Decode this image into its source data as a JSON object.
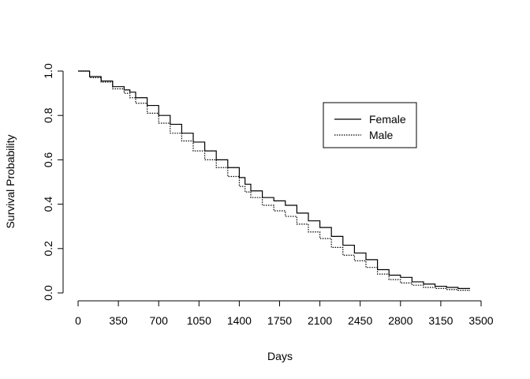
{
  "chart_data": {
    "type": "line",
    "title": "",
    "xlabel": "Days",
    "ylabel": "Survival Probability",
    "xlim": [
      0,
      3500
    ],
    "ylim": [
      0,
      1
    ],
    "xticks": [
      0,
      350,
      700,
      1050,
      1400,
      1750,
      2100,
      2450,
      2800,
      3150,
      3500
    ],
    "xtick_labels": [
      "0",
      "350",
      "700",
      "1050",
      "1400",
      "1750",
      "2100",
      "2450",
      "2800",
      "3150",
      "3500"
    ],
    "yticks": [
      0,
      0.2,
      0.4,
      0.6,
      0.8,
      1.0
    ],
    "ytick_labels": [
      "0.0",
      "0.2",
      "0.4",
      "0.6",
      "0.8",
      "1.0"
    ],
    "grid": false,
    "legend_position": "top-right",
    "series": [
      {
        "name": "Female",
        "line_style": "solid",
        "color": "#000000",
        "x": [
          0,
          100,
          200,
          300,
          400,
          450,
          500,
          600,
          700,
          800,
          900,
          1000,
          1100,
          1200,
          1300,
          1400,
          1450,
          1500,
          1600,
          1700,
          1800,
          1900,
          2000,
          2100,
          2200,
          2300,
          2400,
          2500,
          2600,
          2700,
          2800,
          2900,
          3000,
          3100,
          3200,
          3300,
          3400
        ],
        "y": [
          1.0,
          0.975,
          0.955,
          0.93,
          0.915,
          0.905,
          0.88,
          0.845,
          0.8,
          0.76,
          0.72,
          0.68,
          0.64,
          0.6,
          0.565,
          0.52,
          0.49,
          0.46,
          0.43,
          0.415,
          0.395,
          0.36,
          0.325,
          0.295,
          0.255,
          0.215,
          0.18,
          0.15,
          0.105,
          0.08,
          0.07,
          0.05,
          0.04,
          0.03,
          0.025,
          0.02,
          0.018
        ]
      },
      {
        "name": "Male",
        "line_style": "dotted",
        "color": "#000000",
        "x": [
          0,
          100,
          200,
          300,
          400,
          450,
          500,
          600,
          700,
          800,
          900,
          1000,
          1100,
          1200,
          1300,
          1400,
          1450,
          1500,
          1600,
          1700,
          1800,
          1900,
          2000,
          2100,
          2200,
          2300,
          2400,
          2500,
          2600,
          2700,
          2800,
          2900,
          3000,
          3100,
          3200,
          3300,
          3400
        ],
        "y": [
          1.0,
          0.97,
          0.95,
          0.92,
          0.9,
          0.88,
          0.855,
          0.81,
          0.765,
          0.72,
          0.685,
          0.64,
          0.6,
          0.565,
          0.525,
          0.48,
          0.455,
          0.43,
          0.395,
          0.37,
          0.345,
          0.31,
          0.275,
          0.245,
          0.205,
          0.17,
          0.145,
          0.115,
          0.085,
          0.06,
          0.045,
          0.035,
          0.025,
          0.02,
          0.015,
          0.012,
          0.01
        ]
      }
    ]
  }
}
